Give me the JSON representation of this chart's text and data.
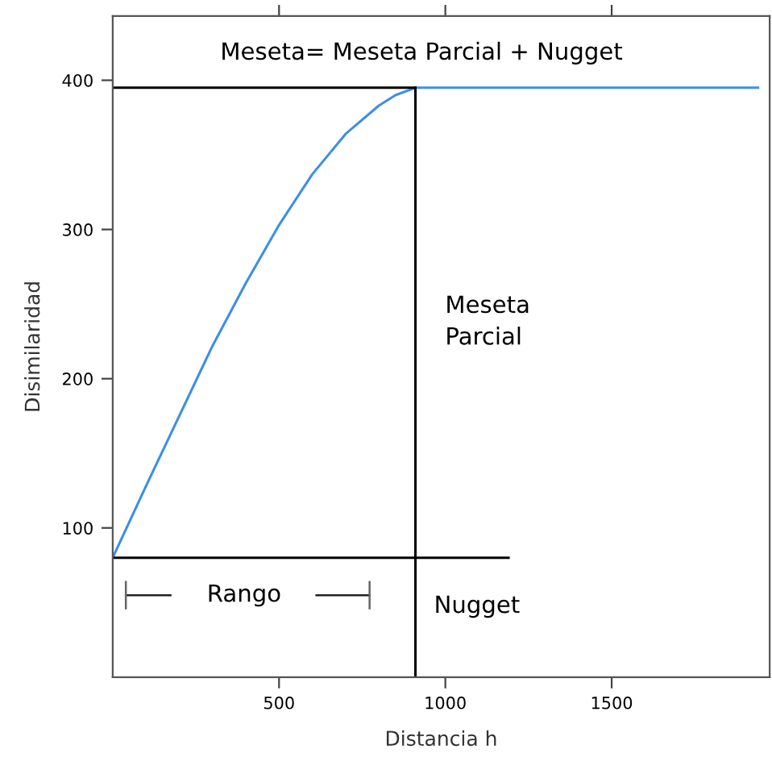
{
  "chart_data": {
    "type": "line",
    "xlabel": "Distancia h",
    "ylabel": "Disimilaridad",
    "xlim": [
      0,
      1975
    ],
    "ylim": [
      0,
      443
    ],
    "xticks": [
      500,
      1000,
      1500
    ],
    "yticks": [
      100,
      200,
      300,
      400
    ],
    "grid": false,
    "marker": "none",
    "line_style": "solid",
    "series": [
      {
        "color": "#3d8fe6",
        "x": [
          0,
          100,
          200,
          300,
          400,
          500,
          600,
          700,
          800,
          850,
          910,
          1940
        ],
        "values": [
          80,
          128,
          175,
          222,
          264,
          303,
          337,
          364,
          383,
          390,
          395,
          395
        ]
      },
      {
        "color": "#000000",
        "x": [
          0,
          910
        ],
        "values": [
          395,
          395
        ]
      },
      {
        "color": "#000000",
        "x": [
          910,
          910
        ],
        "values": [
          0,
          395
        ]
      },
      {
        "color": "#000000",
        "x": [
          0,
          1190
        ],
        "values": [
          80,
          80
        ]
      }
    ],
    "annotations": [
      "Meseta= Meseta Parcial + Nugget",
      "Meseta\nParcial",
      "Rango",
      "Nugget"
    ]
  }
}
